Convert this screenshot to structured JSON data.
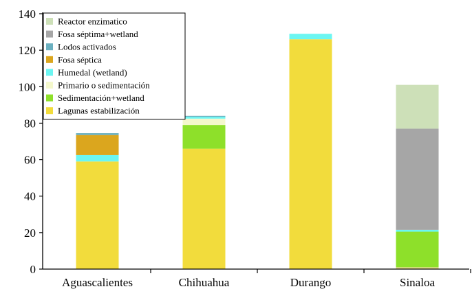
{
  "chart_data": {
    "type": "bar",
    "stacked": true,
    "categories": [
      "Aguascalientes",
      "Chihuahua",
      "Durango",
      "Sinaloa"
    ],
    "ylim": [
      0,
      140
    ],
    "yticks": [
      0,
      20,
      40,
      60,
      80,
      100,
      120,
      140
    ],
    "grid": false,
    "legend_position": "top-left",
    "series": [
      {
        "name": "Lagunas estabilización",
        "color": "#f2dc3c",
        "values": [
          59,
          66,
          126,
          0
        ]
      },
      {
        "name": "Sedimentación+wetland",
        "color": "#8ee02a",
        "values": [
          0,
          13,
          0,
          19.5
        ]
      },
      {
        "name": "Primario o sedimentación",
        "color": "#f4f8cc",
        "values": [
          0,
          3.5,
          0,
          0
        ]
      },
      {
        "name": "Humedal (wetland)",
        "color": "#6cf6f2",
        "values": [
          3.5,
          1,
          3,
          1
        ]
      },
      {
        "name": "Fosa séptica",
        "color": "#dba61e",
        "values": [
          11,
          0,
          0,
          0
        ]
      },
      {
        "name": "Lodos activados",
        "color": "#6bb0c0",
        "values": [
          1,
          0.5,
          0,
          0
        ]
      },
      {
        "name": "Fosa séptima+wetland",
        "color": "#a6a6a6",
        "values": [
          0,
          0,
          0,
          55.5
        ]
      },
      {
        "name": "Reactor enzimatico",
        "color": "#cde0b8",
        "values": [
          0,
          0,
          0,
          24
        ]
      }
    ],
    "extra_segments": [
      {
        "category": "Sinaloa",
        "from": 0,
        "to": 1,
        "color": "#e4da8a"
      }
    ]
  }
}
